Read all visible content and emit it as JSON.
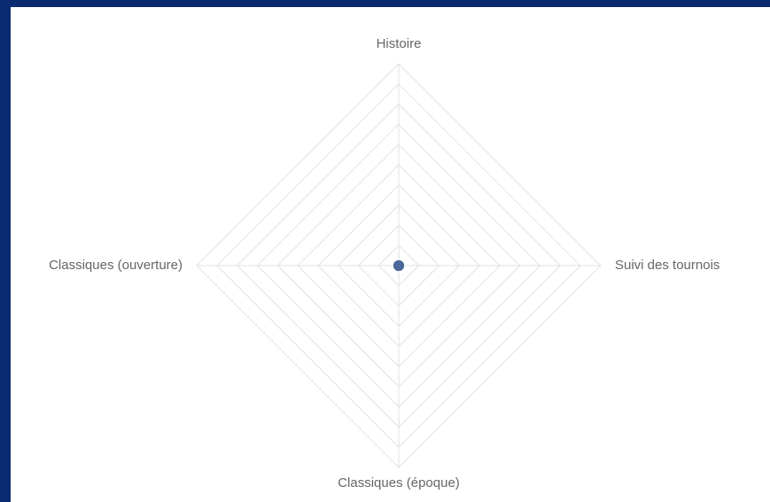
{
  "chart_data": {
    "type": "radar",
    "categories": [
      "Histoire",
      "Suivi des tournois",
      "Classiques (époque)",
      "Classiques (ouverture)"
    ],
    "values": [
      0,
      0,
      0,
      0
    ],
    "color": "#4a6899",
    "ylim": [
      0,
      10
    ],
    "grid_rings": 10,
    "grid": true
  }
}
